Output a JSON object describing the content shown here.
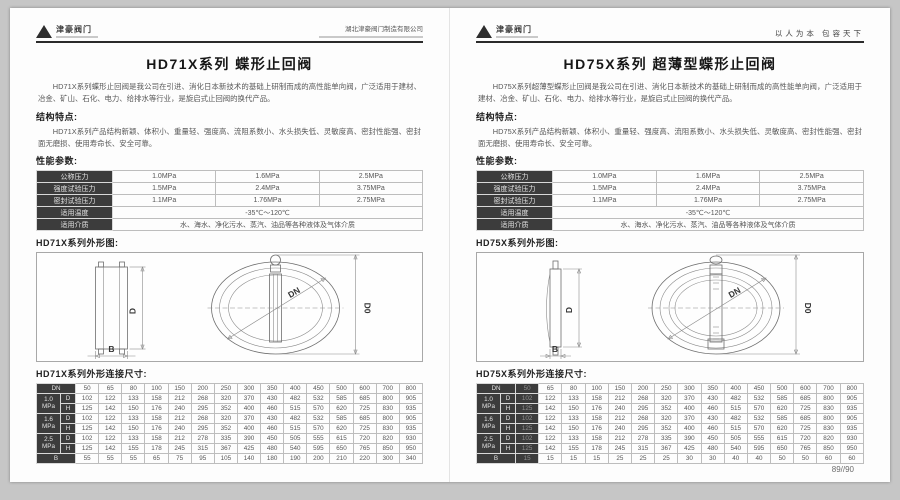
{
  "footer": {
    "page_number": "89//90"
  },
  "colors": {
    "dark_cell": "#3c3c3c",
    "rule": "#2b2b2b",
    "paper": "#fdfdfd"
  },
  "pages": [
    {
      "header": {
        "logo_text": "津豪阀门",
        "right_text": "湖北津豪阀门制造有限公司"
      },
      "title": "HD71X系列 蝶形止回阀",
      "intro": "HD71X系列蝶形止回阀是我公司在引进、消化日本新技术的基础上研制而成的高性能单向阀，广泛适用于建材、冶金、矿山、石化、电力、给排水等行业，是旋启式止回阀的换代产品。",
      "sections": {
        "features_label": "结构特点:",
        "features_text": "HD71X系列产品结构新颖、体积小、重量轻、强度高、流阻系数小、水头损失低、灵敏度高、密封性能强、密封面无磨损、使用寿命长、安全可靠。",
        "perf_label": "性能参数:",
        "outline_label": "HD71X系列外形图:",
        "dims_label": "HD71X系列外形连接尺寸:"
      },
      "perf_table": {
        "rows": [
          {
            "label": "公称压力",
            "values": [
              "1.0MPa",
              "1.6MPa",
              "2.5MPa"
            ]
          },
          {
            "label": "强度试验压力",
            "values": [
              "1.5MPa",
              "2.4MPa",
              "3.75MPa"
            ]
          },
          {
            "label": "密封试验压力",
            "values": [
              "1.1MPa",
              "1.76MPa",
              "2.75MPa"
            ]
          },
          {
            "label": "适用温度",
            "span": "-35℃～120℃"
          },
          {
            "label": "适用介质",
            "span": "水、海水、净化污水、蒸汽、油品等各种液体及气体介质"
          }
        ]
      },
      "diagram": {
        "labels": {
          "d": "D",
          "b": "B",
          "dn": "DN",
          "d0": "D0"
        }
      },
      "dim_table": {
        "dark_first_data_col": false,
        "dn_label": "DN",
        "b_label": "B",
        "dn": [
          "50",
          "65",
          "80",
          "100",
          "150",
          "200",
          "250",
          "300",
          "350",
          "400",
          "450",
          "500",
          "600",
          "700",
          "800"
        ],
        "groups": [
          {
            "pressure": "1.0\nMPa",
            "rows": [
              {
                "key": "D",
                "values": [
                  "102",
                  "122",
                  "133",
                  "158",
                  "212",
                  "268",
                  "320",
                  "370",
                  "430",
                  "482",
                  "532",
                  "585",
                  "685",
                  "800",
                  "905"
                ]
              },
              {
                "key": "H",
                "values": [
                  "125",
                  "142",
                  "150",
                  "176",
                  "240",
                  "295",
                  "352",
                  "400",
                  "460",
                  "515",
                  "570",
                  "620",
                  "725",
                  "830",
                  "935"
                ]
              }
            ]
          },
          {
            "pressure": "1.6\nMPa",
            "rows": [
              {
                "key": "D",
                "values": [
                  "102",
                  "122",
                  "133",
                  "158",
                  "212",
                  "268",
                  "320",
                  "370",
                  "430",
                  "482",
                  "532",
                  "585",
                  "685",
                  "800",
                  "905"
                ]
              },
              {
                "key": "H",
                "values": [
                  "125",
                  "142",
                  "150",
                  "176",
                  "240",
                  "295",
                  "352",
                  "400",
                  "460",
                  "515",
                  "570",
                  "620",
                  "725",
                  "830",
                  "935"
                ]
              }
            ]
          },
          {
            "pressure": "2.5\nMPa",
            "rows": [
              {
                "key": "D",
                "values": [
                  "102",
                  "122",
                  "133",
                  "158",
                  "212",
                  "278",
                  "335",
                  "390",
                  "450",
                  "505",
                  "555",
                  "615",
                  "720",
                  "820",
                  "930"
                ]
              },
              {
                "key": "H",
                "values": [
                  "125",
                  "142",
                  "155",
                  "178",
                  "245",
                  "315",
                  "367",
                  "425",
                  "480",
                  "540",
                  "595",
                  "650",
                  "765",
                  "850",
                  "950"
                ]
              }
            ]
          }
        ],
        "b": [
          "55",
          "55",
          "55",
          "65",
          "75",
          "95",
          "105",
          "140",
          "180",
          "190",
          "200",
          "210",
          "220",
          "300",
          "340"
        ]
      }
    },
    {
      "header": {
        "logo_text": "津豪阀门",
        "right_text": "以人为本  包容天下"
      },
      "title": "HD75X系列 超薄型蝶形止回阀",
      "intro": "HD75X系列超薄型蝶形止回阀是我公司在引进、消化日本新技术的基础上研制而成的高性能单向阀，广泛适用于建材、冶金、矿山、石化、电力、给排水等行业，是旋启式止回阀的换代产品。",
      "sections": {
        "features_label": "结构特点:",
        "features_text": "HD75X系列产品结构新颖、体积小、重量轻、强度高、流阻系数小、水头损失低、灵敏度高、密封性能强、密封面无磨损、使用寿命长、安全可靠。",
        "perf_label": "性能参数:",
        "outline_label": "HD75X系列外形图:",
        "dims_label": "HD75X系列外形连接尺寸:"
      },
      "perf_table": {
        "rows": [
          {
            "label": "公称压力",
            "values": [
              "1.0MPa",
              "1.6MPa",
              "2.5MPa"
            ]
          },
          {
            "label": "强度试验压力",
            "values": [
              "1.5MPa",
              "2.4MPa",
              "3.75MPa"
            ]
          },
          {
            "label": "密封试验压力",
            "values": [
              "1.1MPa",
              "1.76MPa",
              "2.75MPa"
            ]
          },
          {
            "label": "适用温度",
            "span": "-35℃～120℃"
          },
          {
            "label": "适用介质",
            "span": "水、海水、净化污水、蒸汽、油品等各种液体及气体介质"
          }
        ]
      },
      "diagram": {
        "labels": {
          "d": "D",
          "b": "B",
          "dn": "DN",
          "d0": "D0"
        }
      },
      "dim_table": {
        "dark_first_data_col": true,
        "dn_label": "DN",
        "b_label": "B",
        "dn": [
          "50",
          "65",
          "80",
          "100",
          "150",
          "200",
          "250",
          "300",
          "350",
          "400",
          "450",
          "500",
          "600",
          "700",
          "800"
        ],
        "groups": [
          {
            "pressure": "1.0\nMPa",
            "rows": [
              {
                "key": "D",
                "values": [
                  "102",
                  "122",
                  "133",
                  "158",
                  "212",
                  "268",
                  "320",
                  "370",
                  "430",
                  "482",
                  "532",
                  "585",
                  "685",
                  "800",
                  "905"
                ]
              },
              {
                "key": "H",
                "values": [
                  "125",
                  "142",
                  "150",
                  "176",
                  "240",
                  "295",
                  "352",
                  "400",
                  "460",
                  "515",
                  "570",
                  "620",
                  "725",
                  "830",
                  "935"
                ]
              }
            ]
          },
          {
            "pressure": "1.6\nMPa",
            "rows": [
              {
                "key": "D",
                "values": [
                  "102",
                  "122",
                  "133",
                  "158",
                  "212",
                  "268",
                  "320",
                  "370",
                  "430",
                  "482",
                  "532",
                  "585",
                  "685",
                  "800",
                  "905"
                ]
              },
              {
                "key": "H",
                "values": [
                  "125",
                  "142",
                  "150",
                  "176",
                  "240",
                  "295",
                  "352",
                  "400",
                  "460",
                  "515",
                  "570",
                  "620",
                  "725",
                  "830",
                  "935"
                ]
              }
            ]
          },
          {
            "pressure": "2.5\nMPa",
            "rows": [
              {
                "key": "D",
                "values": [
                  "102",
                  "122",
                  "133",
                  "158",
                  "212",
                  "278",
                  "335",
                  "390",
                  "450",
                  "505",
                  "555",
                  "615",
                  "720",
                  "820",
                  "930"
                ]
              },
              {
                "key": "H",
                "values": [
                  "125",
                  "142",
                  "155",
                  "178",
                  "245",
                  "315",
                  "367",
                  "425",
                  "480",
                  "540",
                  "595",
                  "650",
                  "765",
                  "850",
                  "950"
                ]
              }
            ]
          }
        ],
        "b": [
          "15",
          "15",
          "15",
          "15",
          "25",
          "25",
          "25",
          "30",
          "30",
          "40",
          "40",
          "50",
          "50",
          "60",
          "60"
        ]
      }
    }
  ]
}
